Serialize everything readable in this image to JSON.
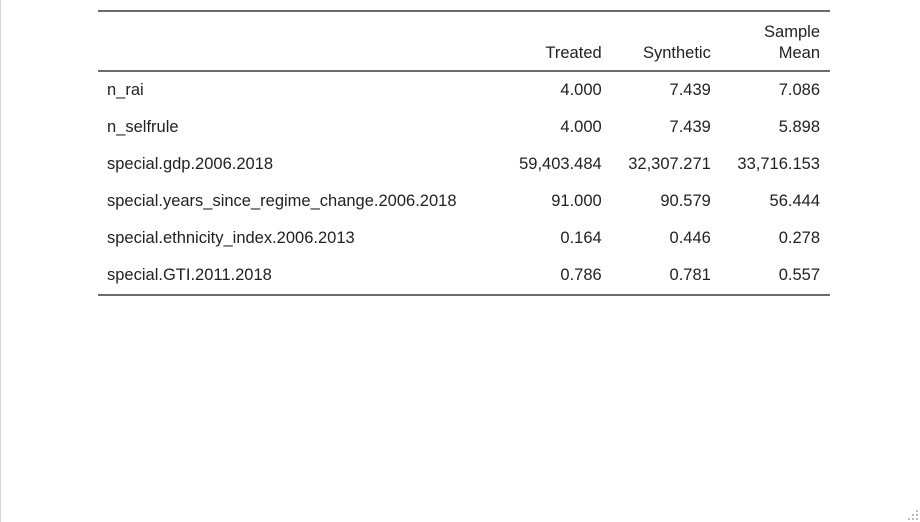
{
  "table": {
    "columns": [
      "",
      "Treated",
      "Synthetic",
      "Sample Mean"
    ],
    "header_lines": {
      "treated": [
        "Treated"
      ],
      "synthetic": [
        "Synthetic"
      ],
      "sample_mean": [
        "Sample",
        "Mean"
      ]
    },
    "rows": [
      {
        "label": "n_rai",
        "treated": "4.000",
        "synthetic": "7.439",
        "sample_mean": "7.086"
      },
      {
        "label": "n_selfrule",
        "treated": "4.000",
        "synthetic": "7.439",
        "sample_mean": "5.898"
      },
      {
        "label": "special.gdp.2006.2018",
        "treated": "59,403.484",
        "synthetic": "32,307.271",
        "sample_mean": "33,716.153"
      },
      {
        "label": "special.years_since_regime_change.2006.2018",
        "treated": "91.000",
        "synthetic": "90.579",
        "sample_mean": "56.444"
      },
      {
        "label": "special.ethnicity_index.2006.2013",
        "treated": "0.164",
        "synthetic": "0.446",
        "sample_mean": "0.278"
      },
      {
        "label": "special.GTI.2011.2018",
        "treated": "0.786",
        "synthetic": "0.781",
        "sample_mean": "0.557"
      }
    ]
  },
  "colors": {
    "rule": "#6b6b6b",
    "text": "#222222",
    "background": "#ffffff"
  },
  "icons": {
    "resize_grip": "resize-grip-icon"
  }
}
